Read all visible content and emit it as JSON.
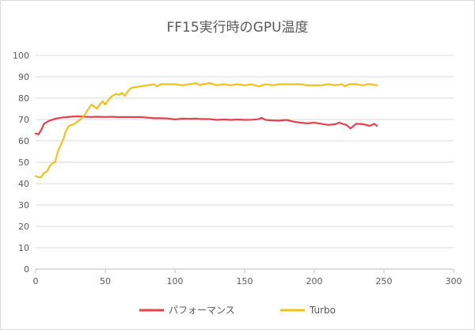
{
  "chart_data": {
    "type": "line",
    "title": "FF15実行時のGPU温度",
    "xlabel": "",
    "ylabel": "",
    "xlim": [
      0,
      300
    ],
    "ylim": [
      0,
      100
    ],
    "xticks": [
      0,
      50,
      100,
      150,
      200,
      250,
      300
    ],
    "yticks": [
      0,
      10,
      20,
      30,
      40,
      50,
      60,
      70,
      80,
      90,
      100
    ],
    "grid": true,
    "legend_position": "bottom",
    "series": [
      {
        "name": "パフォーマンス",
        "color": "#e3424a",
        "points": [
          [
            0,
            63.5
          ],
          [
            2,
            63
          ],
          [
            4,
            65
          ],
          [
            6,
            68
          ],
          [
            10,
            69.5
          ],
          [
            15,
            70.5
          ],
          [
            20,
            71
          ],
          [
            25,
            71.3
          ],
          [
            30,
            71.5
          ],
          [
            35,
            71.3
          ],
          [
            40,
            71.2
          ],
          [
            45,
            71.3
          ],
          [
            50,
            71.2
          ],
          [
            55,
            71.3
          ],
          [
            60,
            71.1
          ],
          [
            65,
            71.2
          ],
          [
            70,
            71.1
          ],
          [
            75,
            71.2
          ],
          [
            80,
            70.9
          ],
          [
            85,
            70.6
          ],
          [
            90,
            70.6
          ],
          [
            95,
            70.5
          ],
          [
            100,
            70
          ],
          [
            105,
            70.4
          ],
          [
            110,
            70.3
          ],
          [
            115,
            70.4
          ],
          [
            120,
            70.2
          ],
          [
            125,
            70.2
          ],
          [
            130,
            69.8
          ],
          [
            135,
            70
          ],
          [
            140,
            69.8
          ],
          [
            145,
            70
          ],
          [
            150,
            69.8
          ],
          [
            155,
            69.9
          ],
          [
            160,
            70.1
          ],
          [
            162,
            70.8
          ],
          [
            165,
            69.8
          ],
          [
            170,
            69.6
          ],
          [
            175,
            69.5
          ],
          [
            180,
            69.8
          ],
          [
            185,
            69
          ],
          [
            190,
            68.5
          ],
          [
            195,
            68.2
          ],
          [
            200,
            68.5
          ],
          [
            205,
            68
          ],
          [
            210,
            67.5
          ],
          [
            215,
            67.8
          ],
          [
            218,
            68.5
          ],
          [
            220,
            68
          ],
          [
            223,
            67.5
          ],
          [
            226,
            65.8
          ],
          [
            230,
            68
          ],
          [
            235,
            67.8
          ],
          [
            240,
            67
          ],
          [
            243,
            68
          ],
          [
            245,
            67
          ]
        ]
      },
      {
        "name": "Turbo",
        "color": "#f2c019",
        "points": [
          [
            0,
            43.5
          ],
          [
            2,
            43
          ],
          [
            4,
            43
          ],
          [
            6,
            45
          ],
          [
            8,
            45.5
          ],
          [
            10,
            48
          ],
          [
            12,
            49.5
          ],
          [
            14,
            50
          ],
          [
            16,
            55
          ],
          [
            18,
            58
          ],
          [
            20,
            61
          ],
          [
            22,
            65
          ],
          [
            24,
            67
          ],
          [
            26,
            67.5
          ],
          [
            28,
            68
          ],
          [
            30,
            69
          ],
          [
            33,
            70.5
          ],
          [
            35,
            72
          ],
          [
            37,
            74
          ],
          [
            40,
            77
          ],
          [
            42,
            76
          ],
          [
            44,
            75
          ],
          [
            46,
            77
          ],
          [
            48,
            78.5
          ],
          [
            50,
            77
          ],
          [
            52,
            79
          ],
          [
            55,
            81
          ],
          [
            58,
            82
          ],
          [
            60,
            81.5
          ],
          [
            62,
            82.5
          ],
          [
            64,
            81
          ],
          [
            66,
            83
          ],
          [
            68,
            84.5
          ],
          [
            70,
            85
          ],
          [
            75,
            85.5
          ],
          [
            80,
            86
          ],
          [
            85,
            86.5
          ],
          [
            87,
            85.5
          ],
          [
            90,
            86.5
          ],
          [
            95,
            86.5
          ],
          [
            100,
            86.5
          ],
          [
            105,
            86
          ],
          [
            110,
            86.5
          ],
          [
            115,
            87
          ],
          [
            118,
            86
          ],
          [
            120,
            86.5
          ],
          [
            125,
            87
          ],
          [
            130,
            86
          ],
          [
            135,
            86.5
          ],
          [
            140,
            86
          ],
          [
            145,
            86.5
          ],
          [
            150,
            86
          ],
          [
            155,
            86.5
          ],
          [
            160,
            85.5
          ],
          [
            165,
            86.5
          ],
          [
            170,
            86
          ],
          [
            175,
            86.5
          ],
          [
            180,
            86.5
          ],
          [
            185,
            86.5
          ],
          [
            190,
            86.5
          ],
          [
            195,
            86
          ],
          [
            200,
            86
          ],
          [
            205,
            86
          ],
          [
            210,
            86.5
          ],
          [
            215,
            86
          ],
          [
            220,
            86.5
          ],
          [
            222,
            85.5
          ],
          [
            225,
            86.5
          ],
          [
            230,
            86.5
          ],
          [
            235,
            86
          ],
          [
            238,
            86.5
          ],
          [
            240,
            86.5
          ],
          [
            245,
            86
          ]
        ]
      }
    ]
  }
}
